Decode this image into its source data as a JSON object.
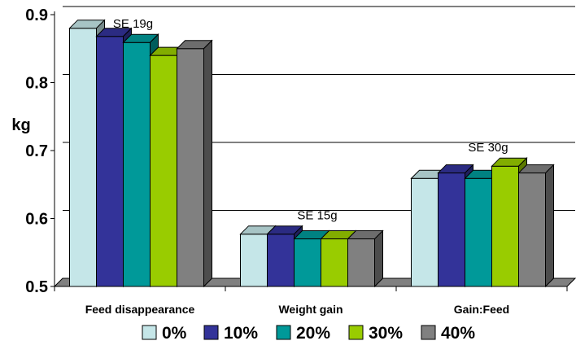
{
  "chart_data": {
    "type": "bar",
    "title": "",
    "xlabel": "",
    "ylabel": "kg",
    "ylim": [
      0.5,
      0.9
    ],
    "yticks": [
      "0.5",
      "0.6",
      "0.7",
      "0.8",
      "0.9"
    ],
    "categories": [
      "Feed disappearance",
      "Weight gain",
      "Gain:Feed"
    ],
    "series": [
      {
        "name": "0%",
        "color": "#c5e6e8",
        "values": [
          0.88,
          0.577,
          0.659
        ]
      },
      {
        "name": "10%",
        "color": "#333399",
        "values": [
          0.868,
          0.577,
          0.667
        ]
      },
      {
        "name": "20%",
        "color": "#009999",
        "values": [
          0.859,
          0.57,
          0.659
        ]
      },
      {
        "name": "30%",
        "color": "#99cc00",
        "values": [
          0.84,
          0.57,
          0.677
        ]
      },
      {
        "name": "40%",
        "color": "#808080",
        "values": [
          0.85,
          0.57,
          0.667
        ]
      }
    ],
    "annotations": [
      "SE 19g",
      "SE 15g",
      "SE 30g"
    ],
    "grid": true,
    "legend_position": "bottom"
  }
}
